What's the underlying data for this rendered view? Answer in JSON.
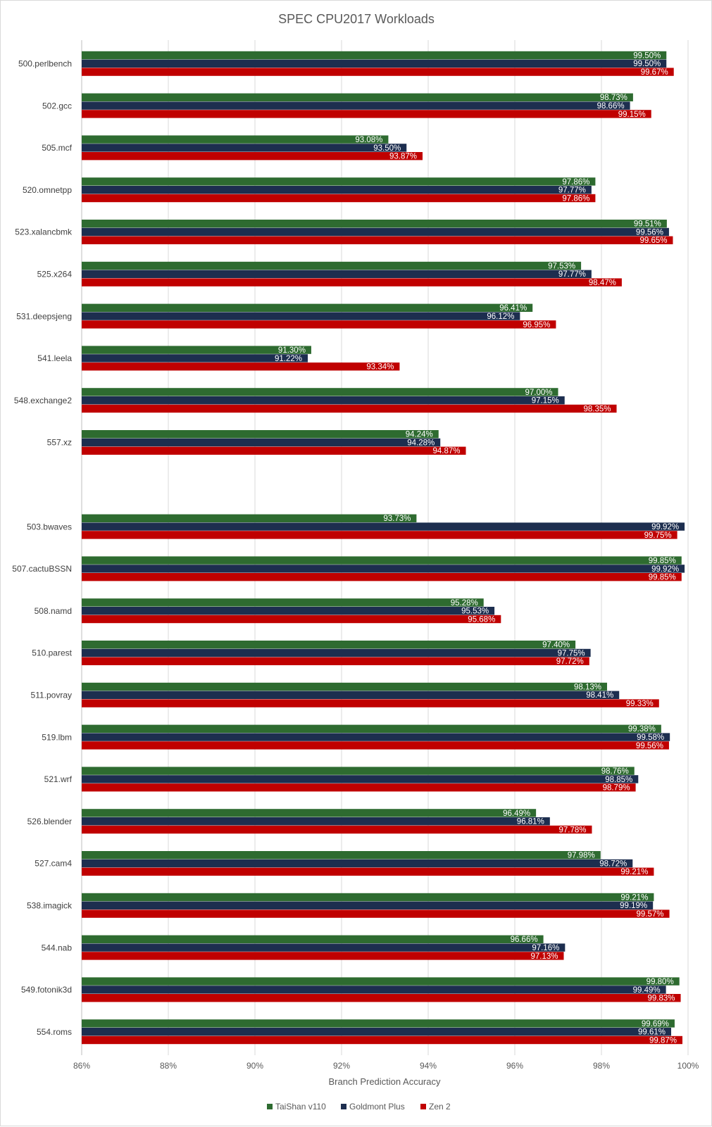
{
  "chart_data": {
    "type": "bar",
    "orientation": "horizontal",
    "title": "SPEC CPU2017 Workloads",
    "xlabel": "Branch Prediction Accuracy",
    "ylabel": "",
    "xlim": [
      86,
      100
    ],
    "xticks": [
      "86%",
      "88%",
      "90%",
      "92%",
      "94%",
      "96%",
      "98%",
      "100%"
    ],
    "grid": true,
    "legend_position": "bottom",
    "groups": [
      [
        "500.perlbench",
        "502.gcc",
        "505.mcf",
        "520.omnetpp",
        "523.xalancbmk",
        "525.x264",
        "531.deepsjeng",
        "541.leela",
        "548.exchange2",
        "557.xz"
      ],
      [
        "503.bwaves",
        "507.cactuBSSN",
        "508.namd",
        "510.parest",
        "511.povray",
        "519.lbm",
        "521.wrf",
        "526.blender",
        "527.cam4",
        "538.imagick",
        "544.nab",
        "549.fotonik3d",
        "554.roms"
      ]
    ],
    "categories": [
      "500.perlbench",
      "502.gcc",
      "505.mcf",
      "520.omnetpp",
      "523.xalancbmk",
      "525.x264",
      "531.deepsjeng",
      "541.leela",
      "548.exchange2",
      "557.xz",
      "503.bwaves",
      "507.cactuBSSN",
      "508.namd",
      "510.parest",
      "511.povray",
      "519.lbm",
      "521.wrf",
      "526.blender",
      "527.cam4",
      "538.imagick",
      "544.nab",
      "549.fotonik3d",
      "554.roms"
    ],
    "series": [
      {
        "name": "TaiShan v110",
        "color": "#2e6b30",
        "values": [
          99.5,
          98.73,
          93.08,
          97.86,
          99.51,
          97.53,
          96.41,
          91.3,
          97.0,
          94.24,
          93.73,
          99.85,
          95.28,
          97.4,
          98.13,
          99.38,
          98.76,
          96.49,
          97.98,
          99.21,
          96.66,
          99.8,
          99.69
        ]
      },
      {
        "name": "Goldmont Plus",
        "color": "#1d2e4f",
        "values": [
          99.5,
          98.66,
          93.5,
          97.77,
          99.56,
          97.77,
          96.12,
          91.22,
          97.15,
          94.28,
          99.92,
          99.92,
          95.53,
          97.75,
          98.41,
          99.58,
          98.85,
          96.81,
          98.72,
          99.19,
          97.16,
          99.49,
          99.61
        ]
      },
      {
        "name": "Zen 2",
        "color": "#c00000",
        "values": [
          99.67,
          99.15,
          93.87,
          97.86,
          99.65,
          98.47,
          96.95,
          93.34,
          98.35,
          94.87,
          99.75,
          99.85,
          95.68,
          97.72,
          99.33,
          99.56,
          98.79,
          97.78,
          99.21,
          99.57,
          97.13,
          99.83,
          99.87
        ]
      }
    ],
    "value_labels": [
      [
        "99.50%",
        "98.73%",
        "93.08%",
        "97.86%",
        "99.51%",
        "97.53%",
        "96.41%",
        "91.30%",
        "97.00%",
        "94.24%",
        "93.73%",
        "99.85%",
        "95.28%",
        "97.40%",
        "98.13%",
        "99.38%",
        "98.76%",
        "96.49%",
        "97.98%",
        "99.21%",
        "96.66%",
        "99.80%",
        "99.69%"
      ],
      [
        "99.50%",
        "98.66%",
        "93.50%",
        "97.77%",
        "99.56%",
        "97.77%",
        "96.12%",
        "91.22%",
        "97.15%",
        "94.28%",
        "99.92%",
        "99.92%",
        "95.53%",
        "97.75%",
        "98.41%",
        "99.58%",
        "98.85%",
        "96.81%",
        "98.72%",
        "99.19%",
        "97.16%",
        "99.49%",
        "99.61%"
      ],
      [
        "99.67%",
        "99.15%",
        "93.87%",
        "97.86%",
        "99.65%",
        "98.47%",
        "96.95%",
        "93.34%",
        "98.35%",
        "94.87%",
        "99.75%",
        "99.85%",
        "95.68%",
        "97.72%",
        "99.33%",
        "99.56%",
        "98.79%",
        "97.78%",
        "99.21%",
        "99.57%",
        "97.13%",
        "99.83%",
        "99.87%"
      ]
    ]
  }
}
